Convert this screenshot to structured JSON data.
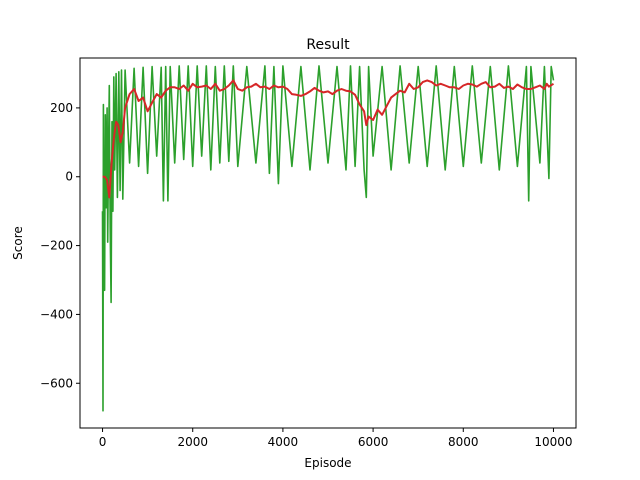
{
  "chart_data": {
    "type": "line",
    "title": "Result",
    "xlabel": "Episode",
    "ylabel": "Score",
    "xlim": [
      -500,
      10500
    ],
    "ylim": [
      -730,
      345
    ],
    "xticks": [
      0,
      2000,
      4000,
      6000,
      8000,
      10000
    ],
    "xtick_labels": [
      "0",
      "2000",
      "4000",
      "6000",
      "8000",
      "10000"
    ],
    "yticks": [
      -600,
      -400,
      -200,
      0,
      200
    ],
    "ytick_labels": [
      "−600",
      "−400",
      "−200",
      "0",
      "200"
    ],
    "grid": false,
    "legend": "none",
    "series": [
      {
        "role": "raw",
        "color": "#2ca02c",
        "points": [
          [
            0,
            -100
          ],
          [
            10,
            -680
          ],
          [
            20,
            210
          ],
          [
            30,
            -240
          ],
          [
            45,
            -330
          ],
          [
            60,
            180
          ],
          [
            80,
            -90
          ],
          [
            100,
            200
          ],
          [
            115,
            -190
          ],
          [
            130,
            40
          ],
          [
            150,
            265
          ],
          [
            170,
            -150
          ],
          [
            190,
            -365
          ],
          [
            210,
            160
          ],
          [
            230,
            -100
          ],
          [
            250,
            290
          ],
          [
            270,
            20
          ],
          [
            300,
            300
          ],
          [
            330,
            -60
          ],
          [
            360,
            305
          ],
          [
            390,
            -40
          ],
          [
            420,
            310
          ],
          [
            450,
            -65
          ],
          [
            500,
            310
          ],
          [
            600,
            40
          ],
          [
            700,
            315
          ],
          [
            800,
            30
          ],
          [
            900,
            318
          ],
          [
            1000,
            10
          ],
          [
            1100,
            320
          ],
          [
            1200,
            60
          ],
          [
            1300,
            318
          ],
          [
            1350,
            -70
          ],
          [
            1400,
            320
          ],
          [
            1450,
            -70
          ],
          [
            1500,
            320
          ],
          [
            1600,
            40
          ],
          [
            1700,
            322
          ],
          [
            1800,
            50
          ],
          [
            1900,
            322
          ],
          [
            2000,
            30
          ],
          [
            2100,
            322
          ],
          [
            2200,
            60
          ],
          [
            2300,
            322
          ],
          [
            2400,
            20
          ],
          [
            2500,
            320
          ],
          [
            2600,
            40
          ],
          [
            2700,
            322
          ],
          [
            2800,
            45
          ],
          [
            2900,
            322
          ],
          [
            3000,
            30
          ],
          [
            3200,
            320
          ],
          [
            3400,
            40
          ],
          [
            3600,
            322
          ],
          [
            3700,
            10
          ],
          [
            3800,
            320
          ],
          [
            3900,
            -20
          ],
          [
            4000,
            322
          ],
          [
            4200,
            30
          ],
          [
            4400,
            320
          ],
          [
            4600,
            20
          ],
          [
            4800,
            322
          ],
          [
            5000,
            40
          ],
          [
            5200,
            320
          ],
          [
            5400,
            20
          ],
          [
            5500,
            322
          ],
          [
            5600,
            30
          ],
          [
            5700,
            320
          ],
          [
            5800,
            20
          ],
          [
            5850,
            -60
          ],
          [
            5900,
            320
          ],
          [
            6000,
            60
          ],
          [
            6200,
            320
          ],
          [
            6400,
            20
          ],
          [
            6600,
            322
          ],
          [
            6800,
            40
          ],
          [
            7000,
            320
          ],
          [
            7200,
            30
          ],
          [
            7400,
            322
          ],
          [
            7600,
            20
          ],
          [
            7800,
            320
          ],
          [
            8000,
            30
          ],
          [
            8200,
            322
          ],
          [
            8400,
            40
          ],
          [
            8600,
            320
          ],
          [
            8800,
            20
          ],
          [
            9000,
            322
          ],
          [
            9200,
            30
          ],
          [
            9400,
            320
          ],
          [
            9450,
            -70
          ],
          [
            9500,
            320
          ],
          [
            9700,
            40
          ],
          [
            9800,
            320
          ],
          [
            9900,
            -5
          ],
          [
            9950,
            320
          ],
          [
            10000,
            280
          ]
        ]
      },
      {
        "role": "moving-average",
        "color": "#d62728",
        "points": [
          [
            0,
            0
          ],
          [
            50,
            0
          ],
          [
            100,
            -10
          ],
          [
            150,
            -60
          ],
          [
            200,
            40
          ],
          [
            250,
            110
          ],
          [
            300,
            160
          ],
          [
            350,
            150
          ],
          [
            400,
            100
          ],
          [
            450,
            130
          ],
          [
            500,
            200
          ],
          [
            600,
            240
          ],
          [
            700,
            255
          ],
          [
            800,
            220
          ],
          [
            900,
            230
          ],
          [
            1000,
            190
          ],
          [
            1100,
            215
          ],
          [
            1200,
            240
          ],
          [
            1300,
            230
          ],
          [
            1400,
            250
          ],
          [
            1500,
            260
          ],
          [
            1600,
            260
          ],
          [
            1700,
            255
          ],
          [
            1800,
            265
          ],
          [
            1900,
            250
          ],
          [
            2000,
            270
          ],
          [
            2100,
            260
          ],
          [
            2200,
            262
          ],
          [
            2300,
            265
          ],
          [
            2400,
            255
          ],
          [
            2500,
            270
          ],
          [
            2600,
            250
          ],
          [
            2700,
            255
          ],
          [
            2800,
            265
          ],
          [
            2900,
            280
          ],
          [
            3000,
            255
          ],
          [
            3100,
            250
          ],
          [
            3200,
            260
          ],
          [
            3300,
            262
          ],
          [
            3400,
            270
          ],
          [
            3500,
            260
          ],
          [
            3600,
            262
          ],
          [
            3700,
            255
          ],
          [
            3800,
            265
          ],
          [
            3900,
            260
          ],
          [
            4000,
            262
          ],
          [
            4100,
            255
          ],
          [
            4200,
            240
          ],
          [
            4300,
            238
          ],
          [
            4400,
            235
          ],
          [
            4500,
            240
          ],
          [
            4600,
            248
          ],
          [
            4700,
            258
          ],
          [
            4800,
            250
          ],
          [
            4900,
            245
          ],
          [
            5000,
            248
          ],
          [
            5100,
            240
          ],
          [
            5200,
            250
          ],
          [
            5300,
            255
          ],
          [
            5400,
            250
          ],
          [
            5500,
            248
          ],
          [
            5600,
            238
          ],
          [
            5700,
            210
          ],
          [
            5800,
            190
          ],
          [
            5850,
            150
          ],
          [
            5900,
            175
          ],
          [
            6000,
            165
          ],
          [
            6100,
            195
          ],
          [
            6200,
            180
          ],
          [
            6300,
            205
          ],
          [
            6400,
            230
          ],
          [
            6500,
            240
          ],
          [
            6600,
            250
          ],
          [
            6700,
            245
          ],
          [
            6800,
            270
          ],
          [
            6900,
            255
          ],
          [
            7000,
            260
          ],
          [
            7100,
            275
          ],
          [
            7200,
            280
          ],
          [
            7300,
            275
          ],
          [
            7400,
            265
          ],
          [
            7500,
            270
          ],
          [
            7600,
            265
          ],
          [
            7700,
            260
          ],
          [
            7800,
            260
          ],
          [
            7900,
            255
          ],
          [
            8000,
            265
          ],
          [
            8100,
            270
          ],
          [
            8200,
            268
          ],
          [
            8300,
            262
          ],
          [
            8400,
            270
          ],
          [
            8500,
            275
          ],
          [
            8600,
            260
          ],
          [
            8700,
            262
          ],
          [
            8800,
            270
          ],
          [
            8900,
            258
          ],
          [
            9000,
            262
          ],
          [
            9100,
            255
          ],
          [
            9200,
            268
          ],
          [
            9300,
            260
          ],
          [
            9400,
            255
          ],
          [
            9500,
            255
          ],
          [
            9600,
            260
          ],
          [
            9700,
            265
          ],
          [
            9800,
            255
          ],
          [
            9850,
            270
          ],
          [
            9900,
            262
          ],
          [
            10000,
            270
          ]
        ]
      }
    ]
  }
}
